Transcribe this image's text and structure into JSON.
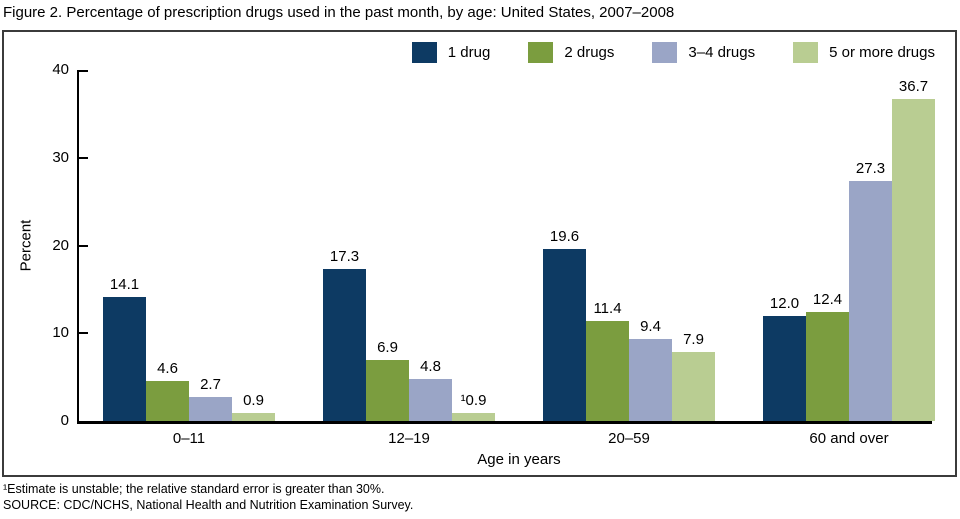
{
  "title": "Figure 2. Percentage of prescription drugs used in the past month, by age: United States, 2007–2008",
  "chart_data": {
    "type": "bar",
    "categories": [
      "0–11",
      "12–19",
      "20–59",
      "60 and over"
    ],
    "series": [
      {
        "name": "1 drug",
        "color": "#0d3a63",
        "values": [
          14.1,
          17.3,
          19.6,
          12.0
        ],
        "value_labels": [
          "14.1",
          "17.3",
          "19.6",
          "12.0"
        ]
      },
      {
        "name": "2 drugs",
        "color": "#7b9d3f",
        "values": [
          4.6,
          6.9,
          11.4,
          12.4
        ],
        "value_labels": [
          "4.6",
          "6.9",
          "11.4",
          "12.4"
        ]
      },
      {
        "name": "3–4 drugs",
        "color": "#9aa5c6",
        "values": [
          2.7,
          4.8,
          9.4,
          27.3
        ],
        "value_labels": [
          "2.7",
          "4.8",
          "9.4",
          "27.3"
        ]
      },
      {
        "name": "5 or more drugs",
        "color": "#b9cd92",
        "values": [
          0.9,
          0.9,
          7.9,
          36.7
        ],
        "value_labels": [
          "0.9",
          "¹0.9",
          "7.9",
          "36.7"
        ]
      }
    ],
    "xlabel": "Age in years",
    "ylabel": "Percent",
    "ylim": [
      0,
      40
    ],
    "yticks": [
      0,
      10,
      20,
      30,
      40
    ],
    "legend_position": "top-right",
    "grid": false,
    "data_labels": true
  },
  "footnotes": [
    "¹Estimate is unstable; the relative standard error is greater than 30%.",
    "SOURCE: CDC/NCHS, National Health and Nutrition Examination Survey."
  ]
}
